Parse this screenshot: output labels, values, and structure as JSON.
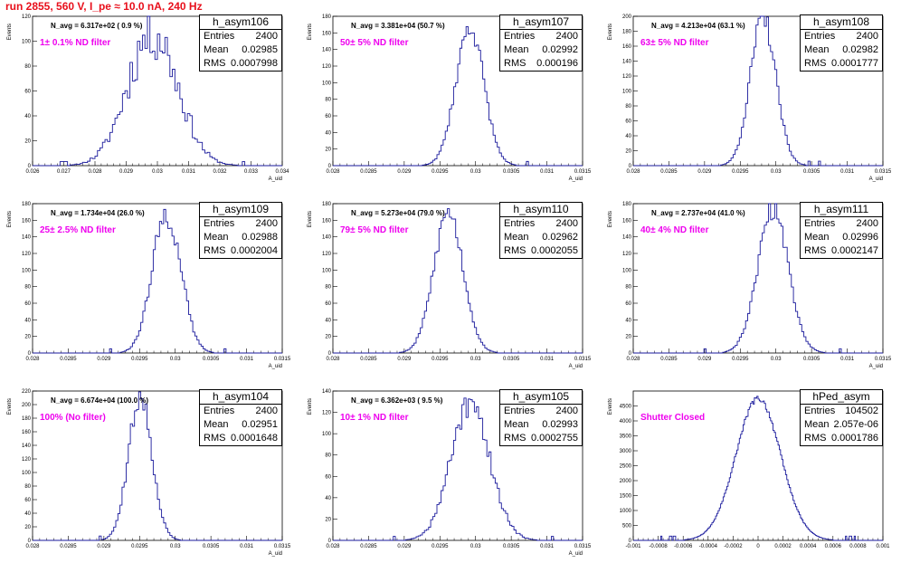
{
  "run_title": "run 2855,   560 V, I_pe ≈ 10.0 nA, 240 Hz",
  "colors": {
    "title": "#e8101c",
    "hist": "#1a1a9c",
    "filter_label": "#ee00ee"
  },
  "pads": [
    {
      "hname": "h_asym106",
      "entries": "2400",
      "mean": "0.02985",
      "rms": "0.0007998",
      "navg": "N_avg = 6.317e+02 ( 0.9 %)",
      "filter": "1± 0.1% ND filter",
      "ylabel": "Events",
      "xlabel": "A_uid",
      "chart_data": {
        "type": "histogram",
        "xlim": [
          0.026,
          0.034
        ],
        "ylim": [
          0,
          120
        ],
        "xticks": [
          "0.026",
          "0.027",
          "0.028",
          "0.029",
          "0.03",
          "0.031",
          "0.032",
          "0.033",
          "0.034"
        ],
        "yticks": [
          "0",
          "20",
          "40",
          "60",
          "80",
          "100",
          "120"
        ],
        "mean": 0.02985,
        "sigma": 0.0008,
        "peak": 108,
        "nbins": 100,
        "noise": 0.22,
        "seed": 11
      }
    },
    {
      "hname": "h_asym107",
      "entries": "2400",
      "mean": "0.02992",
      "rms": "0.000196",
      "navg": "N_avg = 3.381e+04 (50.7 %)",
      "filter": "50± 5% ND filter",
      "ylabel": "Events",
      "xlabel": "A_uid",
      "chart_data": {
        "type": "histogram",
        "xlim": [
          0.028,
          0.0315
        ],
        "ylim": [
          0,
          180
        ],
        "xticks": [
          "0.028",
          "0.0285",
          "0.029",
          "0.0295",
          "0.03",
          "0.0305",
          "0.031",
          "0.0315"
        ],
        "yticks": [
          "0",
          "20",
          "40",
          "60",
          "80",
          "100",
          "120",
          "140",
          "160",
          "180"
        ],
        "mean": 0.02992,
        "sigma": 0.000196,
        "peak": 168,
        "nbins": 120,
        "noise": 0.08,
        "seed": 23
      }
    },
    {
      "hname": "h_asym108",
      "entries": "2400",
      "mean": "0.02982",
      "rms": "0.0001777",
      "navg": "N_avg = 4.213e+04 (63.1 %)",
      "filter": "63± 5% ND filter",
      "ylabel": "Events",
      "xlabel": "A_uid",
      "chart_data": {
        "type": "histogram",
        "xlim": [
          0.028,
          0.0315
        ],
        "ylim": [
          0,
          200
        ],
        "xticks": [
          "0.028",
          "0.0285",
          "0.029",
          "0.0295",
          "0.03",
          "0.0305",
          "0.031",
          "0.0315"
        ],
        "yticks": [
          "0",
          "20",
          "40",
          "60",
          "80",
          "100",
          "120",
          "140",
          "160",
          "180",
          "200"
        ],
        "mean": 0.02982,
        "sigma": 0.000178,
        "peak": 198,
        "nbins": 120,
        "noise": 0.08,
        "seed": 37
      }
    },
    {
      "hname": "h_asym109",
      "entries": "2400",
      "mean": "0.02988",
      "rms": "0.0002004",
      "navg": "N_avg = 1.734e+04 (26.0 %)",
      "filter": "25± 2.5% ND filter",
      "ylabel": "Events",
      "xlabel": "A_uid",
      "chart_data": {
        "type": "histogram",
        "xlim": [
          0.028,
          0.0315
        ],
        "ylim": [
          0,
          180
        ],
        "xticks": [
          "0.028",
          "0.0285",
          "0.029",
          "0.0295",
          "0.03",
          "0.0305",
          "0.031",
          "0.0315"
        ],
        "yticks": [
          "0",
          "20",
          "40",
          "60",
          "80",
          "100",
          "120",
          "140",
          "160",
          "180"
        ],
        "mean": 0.02988,
        "sigma": 0.0002,
        "peak": 168,
        "nbins": 120,
        "noise": 0.1,
        "seed": 41
      }
    },
    {
      "hname": "h_asym110",
      "entries": "2400",
      "mean": "0.02962",
      "rms": "0.0002055",
      "navg": "N_avg = 5.273e+04 (79.0 %)",
      "filter": "79± 5% ND filter",
      "ylabel": "Events",
      "xlabel": "A_uid",
      "chart_data": {
        "type": "histogram",
        "xlim": [
          0.028,
          0.0315
        ],
        "ylim": [
          0,
          180
        ],
        "xticks": [
          "0.028",
          "0.0285",
          "0.029",
          "0.0295",
          "0.03",
          "0.0305",
          "0.031",
          "0.0315"
        ],
        "yticks": [
          "0",
          "20",
          "40",
          "60",
          "80",
          "100",
          "120",
          "140",
          "160",
          "180"
        ],
        "mean": 0.02962,
        "sigma": 0.000205,
        "peak": 170,
        "nbins": 120,
        "noise": 0.08,
        "seed": 53
      }
    },
    {
      "hname": "h_asym111",
      "entries": "2400",
      "mean": "0.02996",
      "rms": "0.0002147",
      "navg": "N_avg = 2.737e+04 (41.0 %)",
      "filter": "40± 4% ND filter",
      "ylabel": "Events",
      "xlabel": "A_uid",
      "chart_data": {
        "type": "histogram",
        "xlim": [
          0.028,
          0.0315
        ],
        "ylim": [
          0,
          180
        ],
        "xticks": [
          "0.028",
          "0.0285",
          "0.029",
          "0.0295",
          "0.03",
          "0.0305",
          "0.031",
          "0.0315"
        ],
        "yticks": [
          "0",
          "20",
          "40",
          "60",
          "80",
          "100",
          "120",
          "140",
          "160",
          "180"
        ],
        "mean": 0.02996,
        "sigma": 0.000215,
        "peak": 172,
        "nbins": 120,
        "noise": 0.08,
        "seed": 67
      }
    },
    {
      "hname": "h_asym104",
      "entries": "2400",
      "mean": "0.02951",
      "rms": "0.0001648",
      "navg": "N_avg = 6.674e+04 (100.0 %)",
      "filter": "100% (No filter)",
      "ylabel": "Events",
      "xlabel": "A_uid",
      "chart_data": {
        "type": "histogram",
        "xlim": [
          0.028,
          0.0315
        ],
        "ylim": [
          0,
          220
        ],
        "xticks": [
          "0.028",
          "0.0285",
          "0.029",
          "0.0295",
          "0.03",
          "0.0305",
          "0.031",
          "0.0315"
        ],
        "yticks": [
          "0",
          "20",
          "40",
          "60",
          "80",
          "100",
          "120",
          "140",
          "160",
          "180",
          "200",
          "220"
        ],
        "mean": 0.02951,
        "sigma": 0.000165,
        "peak": 212,
        "nbins": 120,
        "noise": 0.08,
        "seed": 71
      }
    },
    {
      "hname": "h_asym105",
      "entries": "2400",
      "mean": "0.02993",
      "rms": "0.0002755",
      "navg": "N_avg = 6.362e+03 ( 9.5 %)",
      "filter": "10± 1% ND filter",
      "ylabel": "Events",
      "xlabel": "A_uid",
      "chart_data": {
        "type": "histogram",
        "xlim": [
          0.028,
          0.0315
        ],
        "ylim": [
          0,
          140
        ],
        "xticks": [
          "0.028",
          "0.0285",
          "0.029",
          "0.0295",
          "0.03",
          "0.0305",
          "0.031",
          "0.0315"
        ],
        "yticks": [
          "0",
          "20",
          "40",
          "60",
          "80",
          "100",
          "120",
          "140"
        ],
        "mean": 0.02993,
        "sigma": 0.000275,
        "peak": 125,
        "nbins": 120,
        "noise": 0.14,
        "seed": 83
      }
    },
    {
      "hname": "hPed_asym",
      "entries": "104502",
      "mean": "2.057e-06",
      "rms": "0.0001786",
      "navg": "",
      "filter": "Shutter Closed",
      "ylabel": "Events",
      "xlabel": "",
      "chart_data": {
        "type": "histogram",
        "xlim": [
          -0.001,
          0.001
        ],
        "ylim": [
          0,
          5000
        ],
        "xticks": [
          "-0.001",
          "-0.0008",
          "-0.0006",
          "-0.0004",
          "-0.0002",
          "0",
          "0.0002",
          "0.0004",
          "0.0006",
          "0.0008",
          "0.001"
        ],
        "yticks": [
          "0",
          "500",
          "1000",
          "1500",
          "2000",
          "2500",
          "3000",
          "3500",
          "4000",
          "4500"
        ],
        "mean": 2e-06,
        "sigma": 0.000179,
        "peak": 4750,
        "nbins": 200,
        "noise": 0.02,
        "seed": 97
      }
    }
  ]
}
